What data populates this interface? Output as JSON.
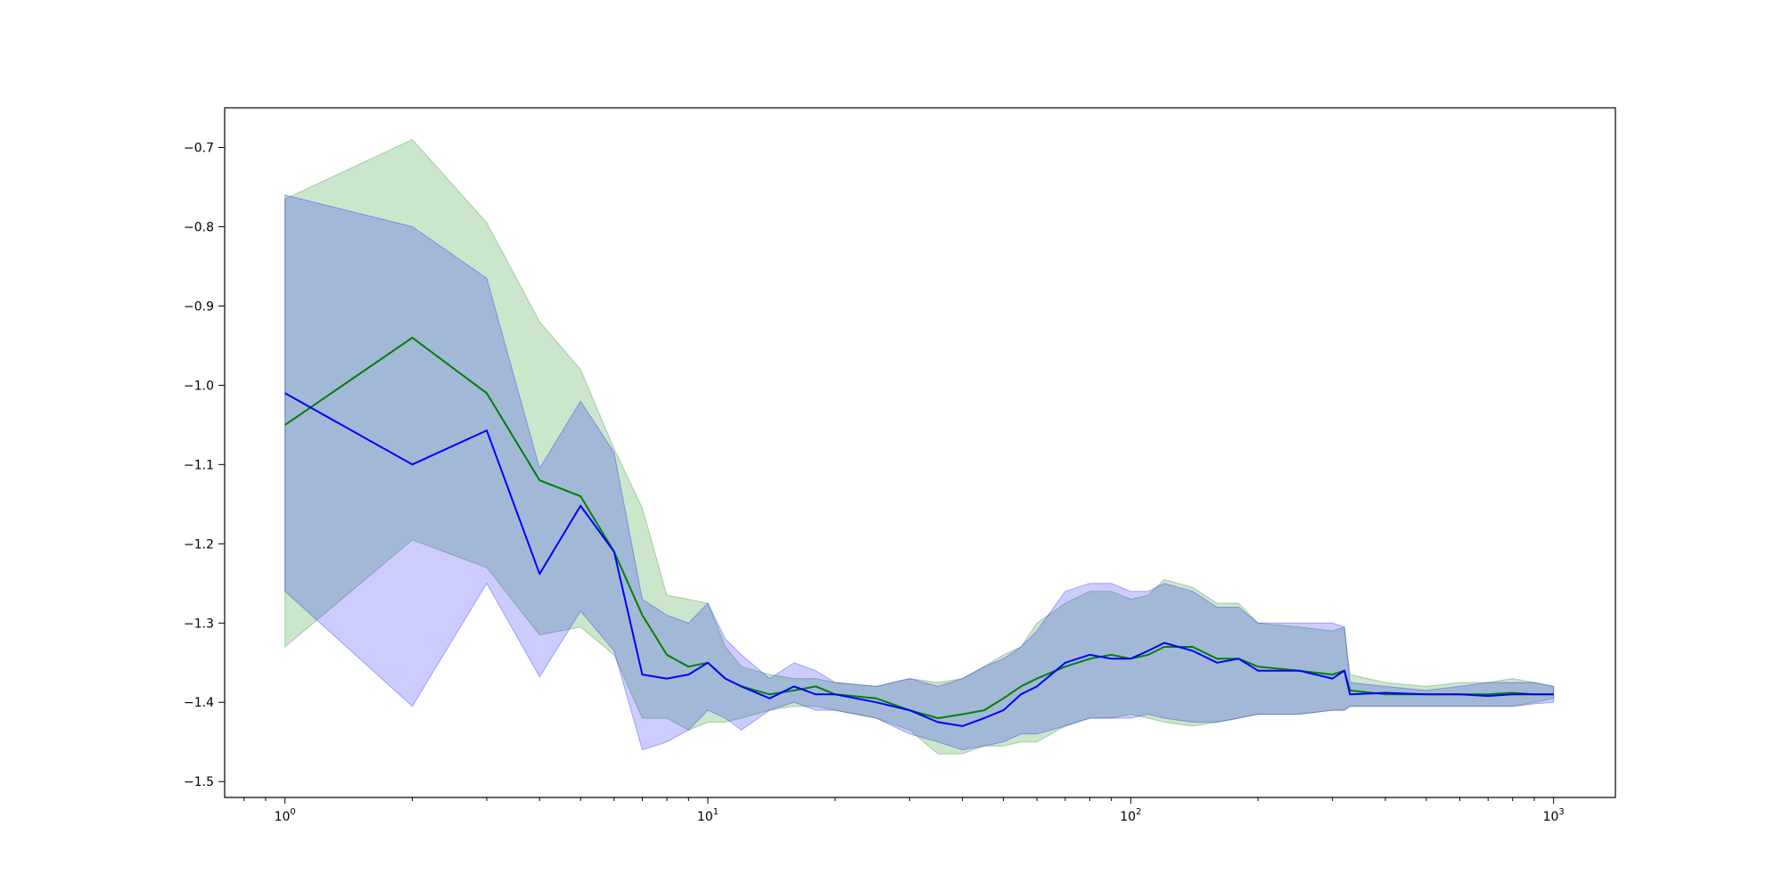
{
  "chart_data": {
    "type": "line",
    "title": "",
    "xlabel": "",
    "ylabel": "",
    "xscale": "log",
    "xlim": [
      0.72,
      1400
    ],
    "ylim": [
      -1.52,
      -0.65
    ],
    "grid": false,
    "legend": "none",
    "x_ticks": [
      {
        "value": 1,
        "base": "10",
        "exp": "0"
      },
      {
        "value": 10,
        "base": "10",
        "exp": "1"
      },
      {
        "value": 100,
        "base": "10",
        "exp": "2"
      },
      {
        "value": 1000,
        "base": "10",
        "exp": "3"
      }
    ],
    "y_ticks": [
      {
        "value": -0.7,
        "label": "−0.7"
      },
      {
        "value": -0.8,
        "label": "−0.8"
      },
      {
        "value": -0.9,
        "label": "−0.9"
      },
      {
        "value": -1.0,
        "label": "−1.0"
      },
      {
        "value": -1.1,
        "label": "−1.1"
      },
      {
        "value": -1.2,
        "label": "−1.2"
      },
      {
        "value": -1.3,
        "label": "−1.3"
      },
      {
        "value": -1.4,
        "label": "−1.4"
      },
      {
        "value": -1.5,
        "label": "−1.5"
      }
    ],
    "series": [
      {
        "color": "#008000",
        "band_color": "#008000",
        "band_opacity": 0.2,
        "x": [
          1,
          2,
          3,
          4,
          5,
          6,
          7,
          8,
          9,
          10,
          11,
          12,
          14,
          16,
          18,
          20,
          25,
          30,
          35,
          40,
          45,
          50,
          55,
          60,
          70,
          80,
          90,
          100,
          110,
          120,
          140,
          160,
          180,
          200,
          250,
          300,
          320,
          330,
          400,
          500,
          600,
          700,
          800,
          900,
          1000
        ],
        "y": [
          -1.05,
          -0.94,
          -1.01,
          -1.12,
          -1.14,
          -1.21,
          -1.29,
          -1.34,
          -1.355,
          -1.35,
          -1.37,
          -1.38,
          -1.39,
          -1.385,
          -1.38,
          -1.39,
          -1.395,
          -1.41,
          -1.42,
          -1.415,
          -1.41,
          -1.395,
          -1.38,
          -1.37,
          -1.355,
          -1.345,
          -1.34,
          -1.345,
          -1.34,
          -1.33,
          -1.33,
          -1.345,
          -1.345,
          -1.355,
          -1.36,
          -1.365,
          -1.36,
          -1.385,
          -1.39,
          -1.39,
          -1.39,
          -1.39,
          -1.388,
          -1.39,
          -1.39
        ],
        "lower": [
          -1.33,
          -1.195,
          -1.23,
          -1.315,
          -1.305,
          -1.34,
          -1.42,
          -1.42,
          -1.435,
          -1.425,
          -1.425,
          -1.42,
          -1.41,
          -1.405,
          -1.405,
          -1.41,
          -1.42,
          -1.435,
          -1.465,
          -1.465,
          -1.455,
          -1.455,
          -1.45,
          -1.45,
          -1.43,
          -1.42,
          -1.42,
          -1.415,
          -1.42,
          -1.425,
          -1.43,
          -1.425,
          -1.42,
          -1.415,
          -1.415,
          -1.41,
          -1.41,
          -1.405,
          -1.405,
          -1.405,
          -1.405,
          -1.405,
          -1.405,
          -1.4,
          -1.395
        ],
        "upper": [
          -0.765,
          -0.69,
          -0.795,
          -0.92,
          -0.98,
          -1.08,
          -1.155,
          -1.265,
          -1.27,
          -1.275,
          -1.33,
          -1.355,
          -1.365,
          -1.37,
          -1.37,
          -1.375,
          -1.38,
          -1.37,
          -1.375,
          -1.37,
          -1.355,
          -1.34,
          -1.33,
          -1.3,
          -1.275,
          -1.26,
          -1.26,
          -1.27,
          -1.265,
          -1.245,
          -1.255,
          -1.275,
          -1.275,
          -1.3,
          -1.305,
          -1.31,
          -1.305,
          -1.365,
          -1.375,
          -1.38,
          -1.375,
          -1.375,
          -1.37,
          -1.375,
          -1.38
        ]
      },
      {
        "color": "#0000ff",
        "band_color": "#0000ff",
        "band_opacity": 0.2,
        "x": [
          1,
          2,
          3,
          4,
          5,
          6,
          7,
          8,
          9,
          10,
          11,
          12,
          14,
          16,
          18,
          20,
          25,
          30,
          35,
          40,
          45,
          50,
          55,
          60,
          70,
          80,
          90,
          100,
          110,
          120,
          140,
          160,
          180,
          200,
          250,
          300,
          320,
          330,
          400,
          500,
          600,
          700,
          800,
          900,
          1000
        ],
        "y": [
          -1.01,
          -1.1,
          -1.057,
          -1.238,
          -1.152,
          -1.21,
          -1.365,
          -1.37,
          -1.365,
          -1.35,
          -1.37,
          -1.38,
          -1.395,
          -1.38,
          -1.39,
          -1.39,
          -1.4,
          -1.41,
          -1.425,
          -1.43,
          -1.42,
          -1.41,
          -1.39,
          -1.38,
          -1.35,
          -1.34,
          -1.345,
          -1.345,
          -1.335,
          -1.325,
          -1.335,
          -1.35,
          -1.345,
          -1.36,
          -1.36,
          -1.37,
          -1.36,
          -1.39,
          -1.388,
          -1.39,
          -1.39,
          -1.392,
          -1.39,
          -1.39,
          -1.39
        ],
        "lower": [
          -1.26,
          -1.405,
          -1.25,
          -1.368,
          -1.285,
          -1.335,
          -1.46,
          -1.45,
          -1.435,
          -1.41,
          -1.42,
          -1.435,
          -1.41,
          -1.4,
          -1.41,
          -1.41,
          -1.42,
          -1.44,
          -1.45,
          -1.46,
          -1.455,
          -1.45,
          -1.44,
          -1.44,
          -1.43,
          -1.42,
          -1.42,
          -1.42,
          -1.415,
          -1.42,
          -1.425,
          -1.425,
          -1.42,
          -1.415,
          -1.415,
          -1.41,
          -1.41,
          -1.405,
          -1.405,
          -1.405,
          -1.405,
          -1.405,
          -1.405,
          -1.402,
          -1.4
        ],
        "upper": [
          -0.76,
          -0.8,
          -0.865,
          -1.105,
          -1.02,
          -1.085,
          -1.27,
          -1.29,
          -1.3,
          -1.275,
          -1.32,
          -1.34,
          -1.37,
          -1.35,
          -1.36,
          -1.375,
          -1.38,
          -1.37,
          -1.38,
          -1.37,
          -1.355,
          -1.345,
          -1.33,
          -1.31,
          -1.26,
          -1.25,
          -1.25,
          -1.26,
          -1.26,
          -1.25,
          -1.26,
          -1.28,
          -1.28,
          -1.3,
          -1.3,
          -1.3,
          -1.305,
          -1.375,
          -1.38,
          -1.385,
          -1.38,
          -1.375,
          -1.375,
          -1.375,
          -1.38
        ]
      }
    ]
  }
}
